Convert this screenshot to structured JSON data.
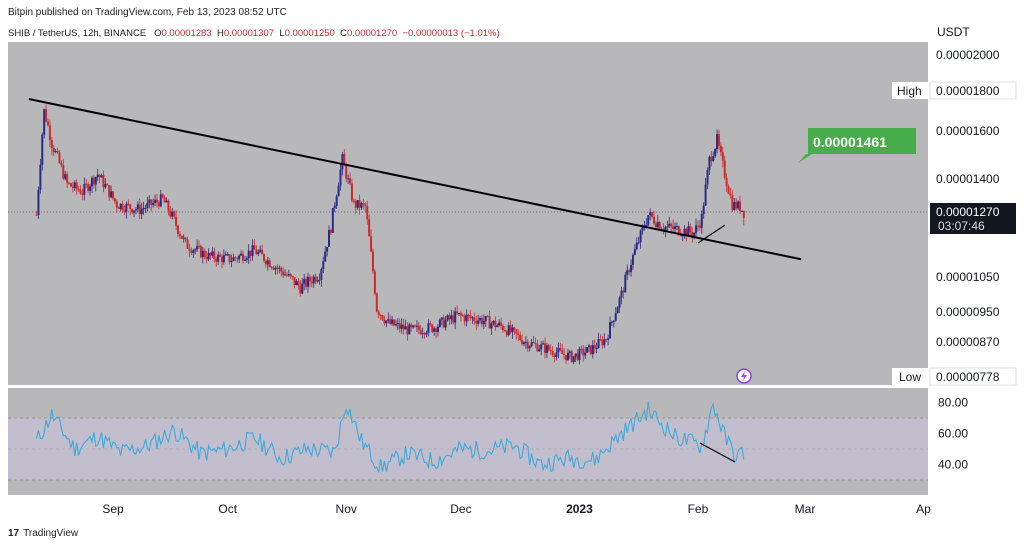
{
  "header": {
    "published": "Bitpin published on TradingView.com, Feb 13, 2023 08:52 UTC"
  },
  "symbol_line": {
    "symbol": "SHIB / TetherUS, 12h, BINANCE",
    "o_label": "O",
    "o_val": "0.00001283",
    "h_label": "H",
    "h_val": "0.00001307",
    "l_label": "L",
    "l_val": "0.00001250",
    "c_label": "C",
    "c_val": "0.00001270",
    "change": "−0.00000013 (−1.01%)"
  },
  "footer": {
    "brand": "TradingView",
    "logo_mark": "17"
  },
  "colors": {
    "pane_bg": "#b8b8bb",
    "up": "#2b2a86",
    "down": "#cc2b2b",
    "rsi_line": "#3fa9d9",
    "rsi_band": "#c6c0d6",
    "green_label": "#46ad4a",
    "trendline": "#000000"
  },
  "chart_data": [
    {
      "type": "candlestick",
      "title": "",
      "axis_unit": "USDT",
      "y_ticks": [
        "0.00002000",
        "0.00001800",
        "0.00001600",
        "0.00001400",
        "0.00001050",
        "0.00000950",
        "0.00000870"
      ],
      "x_ticks": [
        "Sep",
        "Oct",
        "Nov",
        "Dec",
        "2023",
        "Feb",
        "Mar",
        "Ap"
      ],
      "series": [
        {
          "name": "",
          "x": [
            "Aug 12",
            "Aug 14",
            "Aug 16",
            "Aug 20",
            "Aug 24",
            "Aug 28",
            "Sep 2",
            "Sep 8",
            "Sep 14",
            "Sep 20",
            "Sep 26",
            "Oct 2",
            "Oct 8",
            "Oct 14",
            "Oct 20",
            "Oct 25",
            "Oct 28",
            "Oct 31",
            "Nov 3",
            "Nov 6",
            "Nov 9",
            "Nov 12",
            "Nov 18",
            "Nov 24",
            "Nov 30",
            "Dec 6",
            "Dec 12",
            "Dec 18",
            "Dec 24",
            "Dec 30",
            "Jan 4",
            "Jan 8",
            "Jan 12",
            "Jan 15",
            "Jan 19",
            "Jan 23",
            "Jan 27",
            "Jan 31",
            "Feb 2",
            "Feb 4",
            "Feb 6",
            "Feb 8",
            "Feb 10",
            "Feb 12",
            "Feb 13"
          ],
          "values": [
            1.26e-05,
            1.7e-05,
            1.55e-05,
            1.38e-05,
            1.35e-05,
            1.42e-05,
            1.3e-05,
            1.28e-05,
            1.32e-05,
            1.16e-05,
            1.12e-05,
            1.11e-05,
            1.14e-05,
            1.08e-05,
            1.02e-05,
            1.06e-05,
            1.22e-05,
            1.48e-05,
            1.3e-05,
            1.29e-05,
            9.6e-06,
            9.2e-06,
            9e-06,
            9.1e-06,
            9.4e-06,
            9.3e-06,
            9.1e-06,
            8.7e-06,
            8.5e-06,
            8.3e-06,
            8.5e-06,
            8.8e-06,
            1e-05,
            1.12e-05,
            1.26e-05,
            1.22e-05,
            1.21e-05,
            1.2e-05,
            1.25e-05,
            1.48e-05,
            1.56e-05,
            1.42e-05,
            1.3e-05,
            1.29e-05,
            1.27e-05
          ]
        }
      ],
      "trendlines": [
        {
          "name": "",
          "from": [
            "Aug 10",
            1.76e-05
          ],
          "to": [
            "Feb 28",
            1.11e-05
          ]
        },
        {
          "name": "",
          "from": [
            "Feb 1",
            1.165e-05
          ],
          "to": [
            "Feb 8",
            1.225e-05
          ]
        }
      ],
      "labels": {
        "high_label": "High",
        "high_value": "0.00001800",
        "low_label": "Low",
        "low_value": "0.00000778",
        "last_price": "0.00001270",
        "countdown": "03:07:46",
        "callout": "0.00001461"
      }
    },
    {
      "type": "line",
      "title": "",
      "y_ticks": [
        "80.00",
        "60.00",
        "40.00"
      ],
      "band": [
        30,
        70
      ],
      "series": [
        {
          "name": "",
          "x": [
            "Aug 12",
            "Aug 16",
            "Aug 22",
            "Aug 28",
            "Sep 3",
            "Sep 10",
            "Sep 17",
            "Sep 24",
            "Oct 1",
            "Oct 8",
            "Oct 15",
            "Oct 22",
            "Oct 29",
            "Nov 1",
            "Nov 5",
            "Nov 10",
            "Nov 17",
            "Nov 24",
            "Dec 1",
            "Dec 8",
            "Dec 15",
            "Dec 22",
            "Dec 29",
            "Jan 5",
            "Jan 12",
            "Jan 19",
            "Jan 26",
            "Feb 2",
            "Feb 5",
            "Feb 8",
            "Feb 11",
            "Feb 13"
          ],
          "values": [
            55,
            72,
            50,
            58,
            48,
            52,
            62,
            47,
            50,
            57,
            44,
            50,
            48,
            80,
            55,
            38,
            47,
            42,
            50,
            49,
            52,
            40,
            44,
            43,
            60,
            75,
            58,
            52,
            79,
            58,
            45,
            48
          ]
        }
      ],
      "trendlines": [
        {
          "name": "",
          "from": [
            "Feb 1",
            54
          ],
          "to": [
            "Feb 12",
            41
          ]
        }
      ]
    }
  ]
}
